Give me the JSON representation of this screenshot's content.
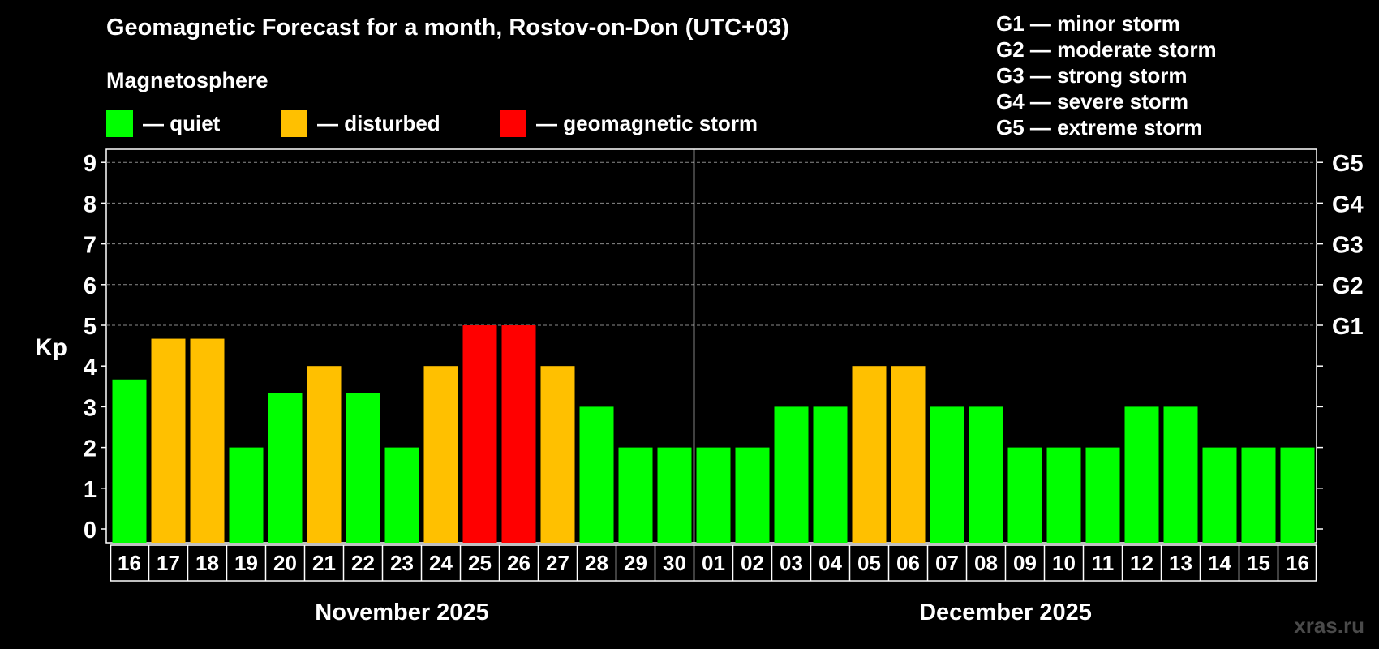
{
  "title": "Geomagnetic Forecast for a month, Rostov-on-Don (UTC+03)",
  "legend": {
    "heading": "Magnetosphere",
    "items": [
      {
        "label": "— quiet",
        "color": "#00ff00"
      },
      {
        "label": "— disturbed",
        "color": "#ffc000"
      },
      {
        "label": "— geomagnetic storm",
        "color": "#ff0000"
      }
    ]
  },
  "storm_scale": [
    "G1 — minor storm",
    "G2 — moderate storm",
    "G3 — strong storm",
    "G4 — severe storm",
    "G5 — extreme storm"
  ],
  "watermark": "xras.ru",
  "colors": {
    "quiet": "#00ff00",
    "disturbed": "#ffc000",
    "storm": "#ff0000",
    "grid": "#8a8a8a",
    "axis": "#ffffff"
  },
  "chart_data": {
    "type": "bar",
    "ylabel": "Kp",
    "ylim": [
      0,
      9
    ],
    "y_ticks": [
      "0",
      "1",
      "2",
      "3",
      "4",
      "5",
      "6",
      "7",
      "8",
      "9"
    ],
    "right_labels": [
      {
        "kp": 5,
        "label": "G1"
      },
      {
        "kp": 6,
        "label": "G2"
      },
      {
        "kp": 7,
        "label": "G3"
      },
      {
        "kp": 8,
        "label": "G4"
      },
      {
        "kp": 9,
        "label": "G5"
      }
    ],
    "grid": true,
    "categories": [
      "16",
      "17",
      "18",
      "19",
      "20",
      "21",
      "22",
      "23",
      "24",
      "25",
      "26",
      "27",
      "28",
      "29",
      "30",
      "01",
      "02",
      "03",
      "04",
      "05",
      "06",
      "07",
      "08",
      "09",
      "10",
      "11",
      "12",
      "13",
      "14",
      "15",
      "16"
    ],
    "values": [
      3.67,
      4.67,
      4.67,
      2,
      3.33,
      4,
      3.33,
      2,
      4,
      5,
      5,
      4,
      3,
      2,
      2,
      2,
      2,
      3,
      3,
      4,
      4,
      3,
      3,
      2,
      2,
      2,
      3,
      3,
      2,
      2,
      2
    ],
    "levels": [
      "quiet",
      "disturbed",
      "disturbed",
      "quiet",
      "quiet",
      "disturbed",
      "quiet",
      "quiet",
      "disturbed",
      "storm",
      "storm",
      "disturbed",
      "quiet",
      "quiet",
      "quiet",
      "quiet",
      "quiet",
      "quiet",
      "quiet",
      "disturbed",
      "disturbed",
      "quiet",
      "quiet",
      "quiet",
      "quiet",
      "quiet",
      "quiet",
      "quiet",
      "quiet",
      "quiet",
      "quiet"
    ],
    "months": [
      {
        "label": "November 2025",
        "start": 0,
        "count": 15
      },
      {
        "label": "December 2025",
        "start": 15,
        "count": 16
      }
    ]
  }
}
